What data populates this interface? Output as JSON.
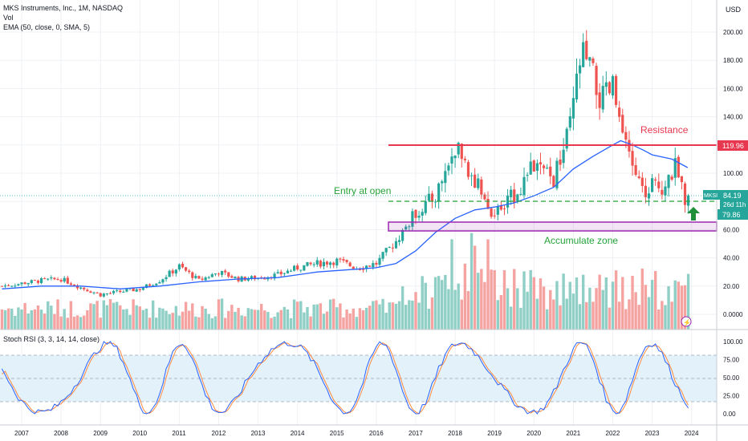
{
  "legend": {
    "title": "MKS Instruments, Inc., 1M, NASDAQ",
    "vol": "Vol",
    "ema": "EMA (50, close, 0, SMA, 5)",
    "stoch": "Stoch RSI (3, 3, 14, 14, close)"
  },
  "currency": "USD",
  "colors": {
    "up": "#26a69a",
    "down": "#ef5350",
    "vol_up": "#8fcfc6",
    "vol_down": "#f4a3a1",
    "ema": "#2962ff",
    "resistance": "#e8384f",
    "zone": "#9c27b0",
    "entry": "#26a33a",
    "stoch_k": "#2962ff",
    "stoch_d": "#ff8a3d",
    "stoch_band": "#e3f1fb"
  },
  "annotations": {
    "resistance": "Resistance",
    "entry": "Entry at open",
    "accumulate": "Accumulate zone"
  },
  "price_labels": {
    "ticker": "MKSI",
    "price": "84.19",
    "countdown": "26d 11h",
    "resistance_level": "119.96",
    "support_level": "79.86"
  },
  "lightning": "⚡",
  "chart_data": {
    "type": "candlestick",
    "x_ticks": [
      "2007",
      "2008",
      "2009",
      "2010",
      "2011",
      "2012",
      "2013",
      "2014",
      "2015",
      "2016",
      "2017",
      "2018",
      "2019",
      "2020",
      "2021",
      "2022",
      "2023",
      "2024"
    ],
    "price_ticks": [
      "200.00",
      "180.00",
      "160.00",
      "140.00",
      "120.00",
      "100.00",
      "80.00",
      "60.00",
      "40.00",
      "20.00",
      "0.0000"
    ],
    "stoch_ticks": [
      "100.00",
      "75.00",
      "50.00",
      "25.00",
      "0.00"
    ],
    "resistance": 119.96,
    "support": 79.86,
    "last_price": 84.19,
    "accumulate_zone": [
      61,
      67
    ],
    "closes": [
      [
        2006.5,
        20
      ],
      [
        2007.0,
        22
      ],
      [
        2007.5,
        24
      ],
      [
        2008.0,
        25
      ],
      [
        2008.5,
        19
      ],
      [
        2009.0,
        14
      ],
      [
        2009.5,
        16
      ],
      [
        2010.0,
        18
      ],
      [
        2010.5,
        24
      ],
      [
        2011.0,
        34
      ],
      [
        2011.5,
        24
      ],
      [
        2012.0,
        30
      ],
      [
        2012.5,
        25
      ],
      [
        2013.0,
        26
      ],
      [
        2013.5,
        28
      ],
      [
        2014.0,
        33
      ],
      [
        2014.5,
        36
      ],
      [
        2015.0,
        38
      ],
      [
        2015.5,
        33
      ],
      [
        2016.0,
        36
      ],
      [
        2016.5,
        52
      ],
      [
        2017.0,
        72
      ],
      [
        2017.5,
        84
      ],
      [
        2018.0,
        118
      ],
      [
        2018.5,
        95
      ],
      [
        2019.0,
        70
      ],
      [
        2019.5,
        85
      ],
      [
        2020.0,
        105
      ],
      [
        2020.5,
        95
      ],
      [
        2020.9,
        130
      ],
      [
        2021.2,
        185
      ],
      [
        2021.4,
        175
      ],
      [
        2021.7,
        150
      ],
      [
        2022.0,
        160
      ],
      [
        2022.3,
        118
      ],
      [
        2022.6,
        100
      ],
      [
        2022.8,
        80
      ],
      [
        2023.0,
        95
      ],
      [
        2023.3,
        90
      ],
      [
        2023.6,
        105
      ],
      [
        2023.8,
        82
      ],
      [
        2023.9,
        84.19
      ]
    ],
    "ema": [
      [
        2006.5,
        18
      ],
      [
        2007.5,
        20
      ],
      [
        2008.5,
        20
      ],
      [
        2009.5,
        18
      ],
      [
        2010.5,
        20
      ],
      [
        2011.5,
        23
      ],
      [
        2012.5,
        25
      ],
      [
        2013.5,
        26
      ],
      [
        2014.5,
        30
      ],
      [
        2015.5,
        32
      ],
      [
        2016.0,
        33
      ],
      [
        2016.5,
        36
      ],
      [
        2017.0,
        45
      ],
      [
        2017.5,
        58
      ],
      [
        2018.0,
        68
      ],
      [
        2018.5,
        74
      ],
      [
        2019.0,
        76
      ],
      [
        2019.5,
        79
      ],
      [
        2020.0,
        84
      ],
      [
        2020.5,
        90
      ],
      [
        2021.0,
        103
      ],
      [
        2021.5,
        112
      ],
      [
        2022.0,
        120
      ],
      [
        2022.2,
        123
      ],
      [
        2022.5,
        120
      ],
      [
        2022.8,
        116
      ],
      [
        2023.0,
        113
      ],
      [
        2023.5,
        110
      ],
      [
        2023.9,
        104
      ]
    ]
  }
}
